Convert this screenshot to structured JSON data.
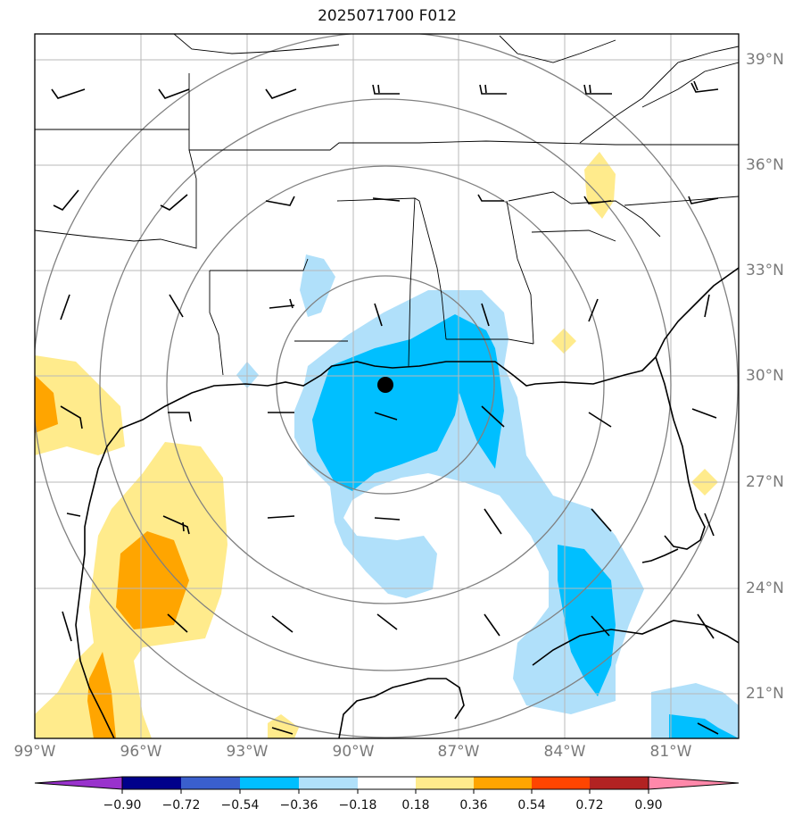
{
  "title": "2025071700 F012",
  "map": {
    "lon_labels": [
      "99°W",
      "96°W",
      "93°W",
      "90°W",
      "87°W",
      "84°W",
      "81°W"
    ],
    "lat_labels": [
      "39°N",
      "36°N",
      "33°N",
      "30°N",
      "27°N",
      "24°N",
      "21°N"
    ],
    "storm_center": {
      "lon": -88.8,
      "lat": 29.7
    }
  },
  "colorbar": {
    "tick_labels": [
      "−0.90",
      "−0.72",
      "−0.54",
      "−0.36",
      "−0.18",
      "0.18",
      "0.36",
      "0.54",
      "0.72",
      "0.90"
    ],
    "colors": [
      "#9932cc",
      "#00008b",
      "#3a5fcd",
      "#00bfff",
      "#b0e0fa",
      "#ffffff",
      "#ffeb8c",
      "#ffa500",
      "#ff4500",
      "#b22222",
      "#ff88aa"
    ]
  }
}
